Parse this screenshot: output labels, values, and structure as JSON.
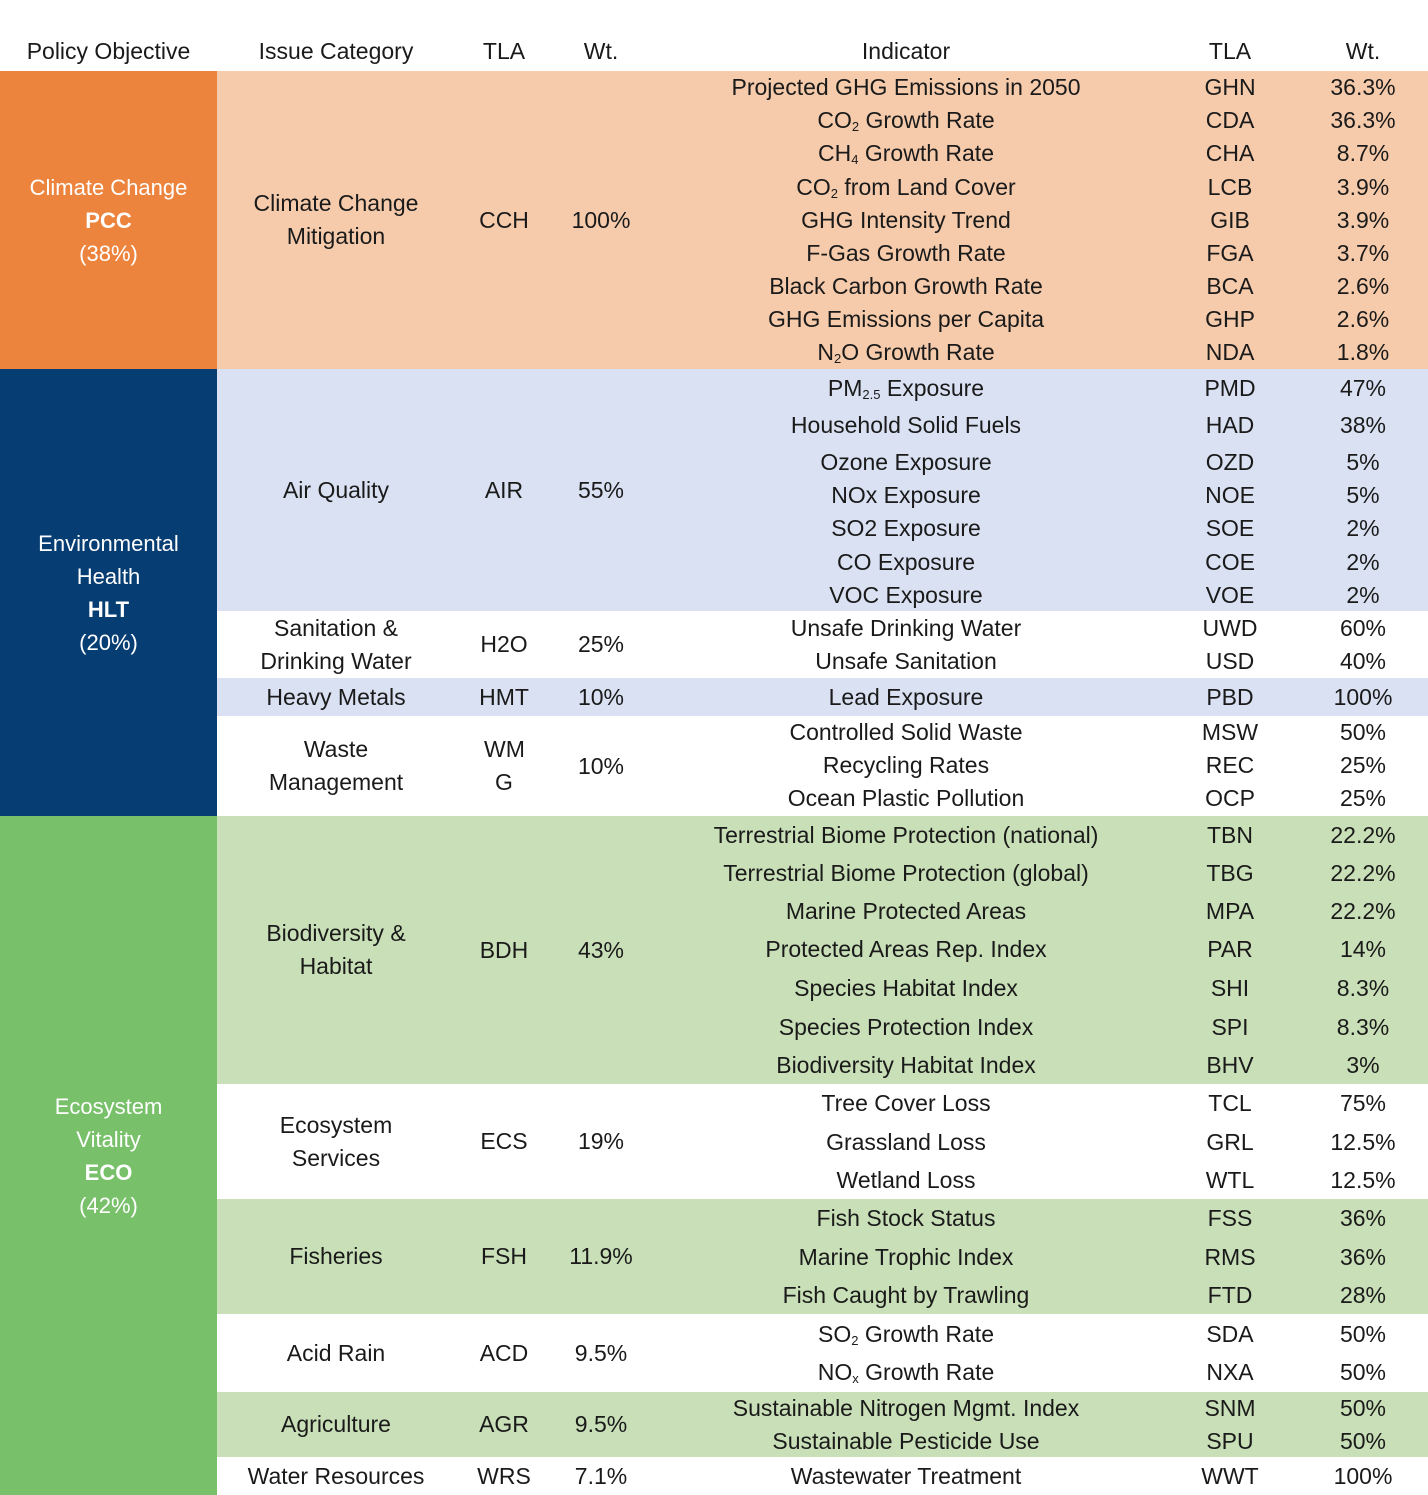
{
  "headers": {
    "policy_objective": "Policy Objective",
    "issue_category": "Issue Category",
    "tla": "TLA",
    "wt": "Wt.",
    "indicator": "Indicator",
    "tla2": "TLA",
    "wt2": "Wt."
  },
  "colors": {
    "climate_dark": "#ED843E",
    "climate_light": "#F6CBAB",
    "health_dark": "#063D73",
    "health_light": "#D9E1F2",
    "eco_dark": "#78C06A",
    "eco_light": "#C8DFB7"
  },
  "objectives": [
    {
      "name": "Climate Change",
      "code": "PCC",
      "weight": "(38%)"
    },
    {
      "name": "Environmental Health",
      "code": "HLT",
      "weight": "(20%)"
    },
    {
      "name": "Ecosystem Vitality",
      "code": "ECO",
      "weight": "(42%)"
    }
  ],
  "categories": [
    {
      "name": "Climate Change Mitigation",
      "tla": "CCH",
      "wt": "100%"
    },
    {
      "name": "Air Quality",
      "tla": "AIR",
      "wt": "55%"
    },
    {
      "name": "Sanitation & Drinking Water",
      "tla": "H2O",
      "wt": "25%"
    },
    {
      "name": "Heavy Metals",
      "tla": "HMT",
      "wt": "10%"
    },
    {
      "name": "Waste Management",
      "tla": "WM G",
      "wt": "10%"
    },
    {
      "name": "Biodiversity & Habitat",
      "tla": "BDH",
      "wt": "43%"
    },
    {
      "name": "Ecosystem Services",
      "tla": "ECS",
      "wt": "19%"
    },
    {
      "name": "Fisheries",
      "tla": "FSH",
      "wt": "11.9%"
    },
    {
      "name": "Acid Rain",
      "tla": "ACD",
      "wt": "9.5%"
    },
    {
      "name": "Agriculture",
      "tla": "AGR",
      "wt": "9.5%"
    },
    {
      "name": "Water Resources",
      "tla": "WRS",
      "wt": "7.1%"
    }
  ],
  "indicators": [
    {
      "name": "Projected GHG Emissions in 2050",
      "tla": "GHN",
      "wt": "36.3%"
    },
    {
      "name": "CO2 Growth Rate",
      "tla": "CDA",
      "wt": "36.3%"
    },
    {
      "name": "CH4 Growth Rate",
      "tla": "CHA",
      "wt": "8.7%"
    },
    {
      "name": "CO2 from Land Cover",
      "tla": "LCB",
      "wt": "3.9%"
    },
    {
      "name": "GHG Intensity Trend",
      "tla": "GIB",
      "wt": "3.9%"
    },
    {
      "name": "F-Gas Growth Rate",
      "tla": "FGA",
      "wt": "3.7%"
    },
    {
      "name": "Black Carbon Growth Rate",
      "tla": "BCA",
      "wt": "2.6%"
    },
    {
      "name": "GHG Emissions per Capita",
      "tla": "GHP",
      "wt": "2.6%"
    },
    {
      "name": "N2O Growth Rate",
      "tla": "NDA",
      "wt": "1.8%"
    },
    {
      "name": "PM2.5 Exposure",
      "tla": "PMD",
      "wt": "47%"
    },
    {
      "name": "Household Solid Fuels",
      "tla": "HAD",
      "wt": "38%"
    },
    {
      "name": "Ozone Exposure",
      "tla": "OZD",
      "wt": "5%"
    },
    {
      "name": "NOx Exposure",
      "tla": "NOE",
      "wt": "5%"
    },
    {
      "name": "SO2 Exposure",
      "tla": "SOE",
      "wt": "2%"
    },
    {
      "name": "CO Exposure",
      "tla": "COE",
      "wt": "2%"
    },
    {
      "name": "VOC Exposure",
      "tla": "VOE",
      "wt": "2%"
    },
    {
      "name": "Unsafe Drinking Water",
      "tla": "UWD",
      "wt": "60%"
    },
    {
      "name": "Unsafe Sanitation",
      "tla": "USD",
      "wt": "40%"
    },
    {
      "name": "Lead Exposure",
      "tla": "PBD",
      "wt": "100%"
    },
    {
      "name": "Controlled Solid Waste",
      "tla": "MSW",
      "wt": "50%"
    },
    {
      "name": "Recycling Rates",
      "tla": "REC",
      "wt": "25%"
    },
    {
      "name": "Ocean Plastic Pollution",
      "tla": "OCP",
      "wt": "25%"
    },
    {
      "name": "Terrestrial Biome Protection (national)",
      "tla": "TBN",
      "wt": "22.2%"
    },
    {
      "name": "Terrestrial Biome Protection (global)",
      "tla": "TBG",
      "wt": "22.2%"
    },
    {
      "name": "Marine Protected Areas",
      "tla": "MPA",
      "wt": "22.2%"
    },
    {
      "name": "Protected Areas Rep. Index",
      "tla": "PAR",
      "wt": "14%"
    },
    {
      "name": "Species Habitat Index",
      "tla": "SHI",
      "wt": "8.3%"
    },
    {
      "name": "Species Protection Index",
      "tla": "SPI",
      "wt": "8.3%"
    },
    {
      "name": "Biodiversity Habitat Index",
      "tla": "BHV",
      "wt": "3%"
    },
    {
      "name": "Tree Cover Loss",
      "tla": "TCL",
      "wt": "75%"
    },
    {
      "name": "Grassland Loss",
      "tla": "GRL",
      "wt": "12.5%"
    },
    {
      "name": "Wetland Loss",
      "tla": "WTL",
      "wt": "12.5%"
    },
    {
      "name": "Fish Stock Status",
      "tla": "FSS",
      "wt": "36%"
    },
    {
      "name": "Marine Trophic Index",
      "tla": "RMS",
      "wt": "36%"
    },
    {
      "name": "Fish Caught by Trawling",
      "tla": "FTD",
      "wt": "28%"
    },
    {
      "name": "SO2 Growth Rate",
      "tla": "SDA",
      "wt": "50%"
    },
    {
      "name": "NOx Growth Rate",
      "tla": "NXA",
      "wt": "50%"
    },
    {
      "name": "Sustainable Nitrogen Mgmt.  Index",
      "tla": "SNM",
      "wt": "50%"
    },
    {
      "name": "Sustainable Pesticide Use",
      "tla": "SPU",
      "wt": "50%"
    },
    {
      "name": "Wastewater Treatment",
      "tla": "WWT",
      "wt": "100%"
    }
  ]
}
